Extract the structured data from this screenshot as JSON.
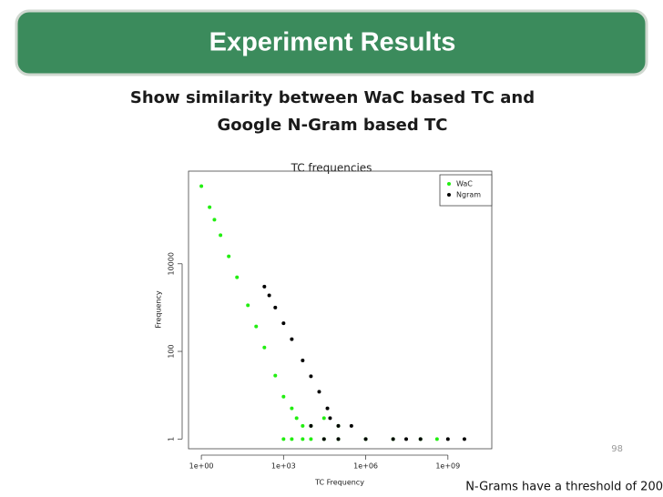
{
  "slide": {
    "title": "Experiment Results",
    "subtitle": [
      "Show similarity between WaC based TC and",
      "Google N-Gram based TC"
    ],
    "page_number": "98",
    "footer": "N-Grams have a threshold of 200"
  },
  "chart_data": {
    "type": "scatter",
    "title": "TC frequencies",
    "x_label": "TC Frequency",
    "y_label": "Frequency",
    "log_x": true,
    "log_y": true,
    "legend": "top-right",
    "xlim": [
      0.34,
      40000000000
    ],
    "ylim": [
      0.6,
      1300000
    ],
    "xticks": [
      {
        "value": 1,
        "label": "1e+00"
      },
      {
        "value": 1000,
        "label": "1e+03"
      },
      {
        "value": 1000000,
        "label": "1e+06"
      },
      {
        "value": 1000000000,
        "label": "1e+09"
      }
    ],
    "yticks": [
      1,
      100,
      10000
    ],
    "series": [
      {
        "name": "WaC",
        "color": "#22ee11",
        "x": [
          1,
          2,
          3,
          5,
          10,
          20,
          50,
          100,
          200,
          500,
          1000,
          2000,
          3000,
          5000,
          10000,
          30000,
          100000,
          1000000,
          10000000,
          100000000,
          400000000,
          2000,
          10000,
          100000,
          30000,
          1000,
          5000
        ],
        "values": [
          590000,
          195000,
          101000,
          45000,
          14800,
          4900,
          1130,
          372,
          123,
          28,
          9.3,
          5,
          3,
          2,
          2,
          1,
          1,
          1,
          1,
          1,
          1,
          1,
          1,
          2,
          3,
          1,
          1
        ]
      },
      {
        "name": "Ngram",
        "color": "#000000",
        "x": [
          200,
          300,
          500,
          1000,
          2000,
          5000,
          10000,
          20000,
          40000,
          50000,
          100000,
          300000,
          1000000,
          10000000,
          30000000,
          100000000,
          1000000000,
          4000000000,
          100000,
          30000,
          10000
        ],
        "values": [
          3000,
          1900,
          1000,
          440,
          190,
          62,
          27,
          12,
          5,
          3,
          2,
          2,
          1,
          1,
          1,
          1,
          1,
          1,
          1,
          1,
          2
        ]
      }
    ]
  }
}
